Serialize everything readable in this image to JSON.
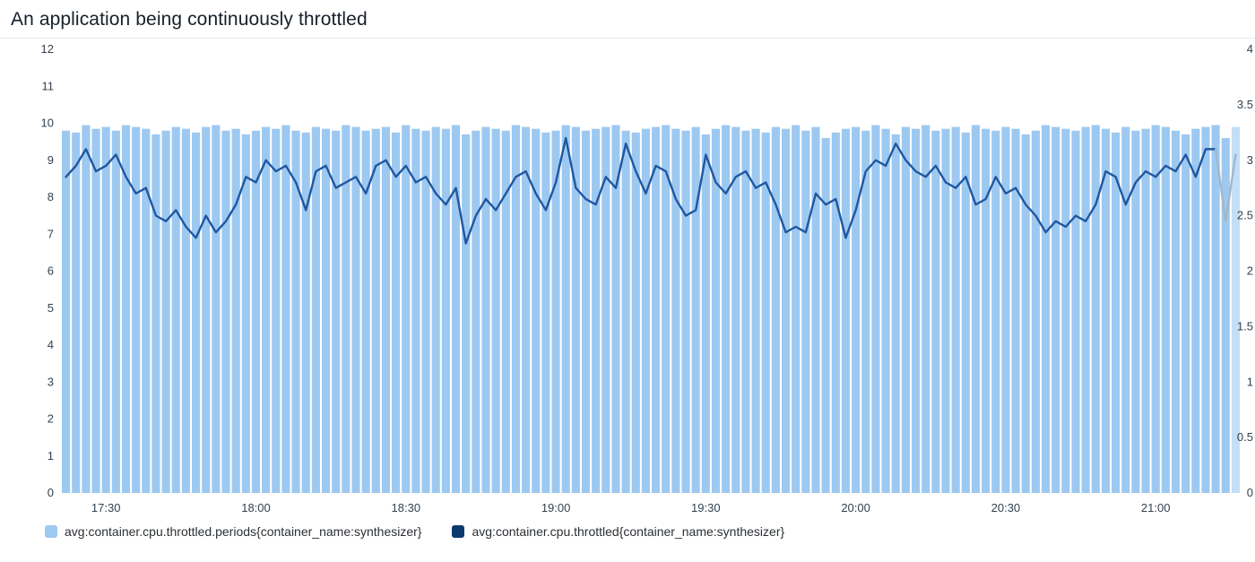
{
  "header": {
    "title": "An application being continuously throttled"
  },
  "legend": [
    {
      "label": "avg:container.cpu.throttled.periods{container_name:synthesizer}",
      "color": "#9ec9f0"
    },
    {
      "label": "avg:container.cpu.throttled{container_name:synthesizer}",
      "color": "#0d3a6e"
    }
  ],
  "chart_data": {
    "type": "bar",
    "title": "An application being continuously throttled",
    "xlabel": "",
    "ylabel": "",
    "x_start": "17:22",
    "x_step_minutes": 2,
    "n_points": 118,
    "x_tick_labels": [
      "17:30",
      "18:00",
      "18:30",
      "19:00",
      "19:30",
      "20:00",
      "20:30",
      "21:00"
    ],
    "left_axis": {
      "min": 0,
      "max": 12,
      "tick_step": 1,
      "ticks": [
        0,
        1,
        2,
        3,
        4,
        5,
        6,
        7,
        8,
        9,
        10,
        11,
        12
      ]
    },
    "right_axis": {
      "min": 0,
      "max": 4,
      "tick_step": 0.5,
      "ticks": [
        0,
        0.5,
        1,
        1.5,
        2,
        2.5,
        3,
        3.5,
        4
      ]
    },
    "grid": false,
    "legend_position": "bottom",
    "partial_start_index": 115,
    "colors": {
      "bar": "#9dc9f1",
      "bar_partial": "#c3def6",
      "line": "#2057a0",
      "line_partial": "#a3b7c9",
      "tick_text": "#33424f"
    },
    "series": [
      {
        "name": "avg:container.cpu.throttled.periods{container_name:synthesizer}",
        "render": "bar",
        "axis": "left",
        "values": [
          9.8,
          9.75,
          9.95,
          9.85,
          9.9,
          9.8,
          9.95,
          9.9,
          9.85,
          9.7,
          9.8,
          9.9,
          9.85,
          9.75,
          9.9,
          9.95,
          9.8,
          9.85,
          9.7,
          9.8,
          9.9,
          9.85,
          9.95,
          9.8,
          9.75,
          9.9,
          9.85,
          9.8,
          9.95,
          9.9,
          9.8,
          9.85,
          9.9,
          9.75,
          9.95,
          9.85,
          9.8,
          9.9,
          9.85,
          9.95,
          9.7,
          9.8,
          9.9,
          9.85,
          9.8,
          9.95,
          9.9,
          9.85,
          9.75,
          9.8,
          9.95,
          9.9,
          9.8,
          9.85,
          9.9,
          9.95,
          9.8,
          9.75,
          9.85,
          9.9,
          9.95,
          9.85,
          9.8,
          9.9,
          9.7,
          9.85,
          9.95,
          9.9,
          9.8,
          9.85,
          9.75,
          9.9,
          9.85,
          9.95,
          9.8,
          9.9,
          9.6,
          9.75,
          9.85,
          9.9,
          9.8,
          9.95,
          9.85,
          9.7,
          9.9,
          9.85,
          9.95,
          9.8,
          9.85,
          9.9,
          9.75,
          9.95,
          9.85,
          9.8,
          9.9,
          9.85,
          9.7,
          9.8,
          9.95,
          9.9,
          9.85,
          9.8,
          9.9,
          9.95,
          9.85,
          9.75,
          9.9,
          9.8,
          9.85,
          9.95,
          9.9,
          9.8,
          9.7,
          9.85,
          9.9,
          9.95,
          9.6,
          9.9
        ]
      },
      {
        "name": "avg:container.cpu.throttled{container_name:synthesizer}",
        "render": "line",
        "axis": "right",
        "values": [
          2.85,
          2.95,
          3.1,
          2.9,
          2.95,
          3.05,
          2.85,
          2.7,
          2.75,
          2.5,
          2.45,
          2.55,
          2.4,
          2.3,
          2.5,
          2.35,
          2.45,
          2.6,
          2.85,
          2.8,
          3.0,
          2.9,
          2.95,
          2.8,
          2.55,
          2.9,
          2.95,
          2.75,
          2.8,
          2.85,
          2.7,
          2.95,
          3.0,
          2.85,
          2.95,
          2.8,
          2.85,
          2.7,
          2.6,
          2.75,
          2.25,
          2.5,
          2.65,
          2.55,
          2.7,
          2.85,
          2.9,
          2.7,
          2.55,
          2.8,
          3.2,
          2.75,
          2.65,
          2.6,
          2.85,
          2.75,
          3.15,
          2.9,
          2.7,
          2.95,
          2.9,
          2.65,
          2.5,
          2.55,
          3.05,
          2.8,
          2.7,
          2.85,
          2.9,
          2.75,
          2.8,
          2.6,
          2.35,
          2.4,
          2.35,
          2.7,
          2.6,
          2.65,
          2.3,
          2.55,
          2.9,
          3.0,
          2.95,
          3.15,
          3.0,
          2.9,
          2.85,
          2.95,
          2.8,
          2.75,
          2.85,
          2.6,
          2.65,
          2.85,
          2.7,
          2.75,
          2.6,
          2.5,
          2.35,
          2.45,
          2.4,
          2.5,
          2.45,
          2.6,
          2.9,
          2.85,
          2.6,
          2.8,
          2.9,
          2.85,
          2.95,
          2.9,
          3.05,
          2.85,
          3.1,
          3.1,
          2.45,
          3.05
        ]
      }
    ]
  }
}
